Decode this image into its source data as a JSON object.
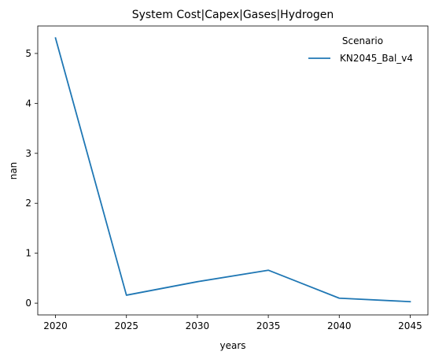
{
  "chart_data": {
    "type": "line",
    "title": "System Cost|Capex|Gases|Hydrogen",
    "xlabel": "years",
    "ylabel": "nan",
    "x": [
      2020,
      2025,
      2030,
      2035,
      2040,
      2045
    ],
    "xticks": [
      2020,
      2025,
      2030,
      2035,
      2040,
      2045
    ],
    "yticks": [
      0,
      1,
      2,
      3,
      4,
      5
    ],
    "xlim": [
      2018.75,
      2046.25
    ],
    "ylim": [
      -0.235,
      5.55
    ],
    "grid": false,
    "legend": {
      "title": "Scenario",
      "placement": "top-right"
    },
    "series": [
      {
        "name": "KN2045_Bal_v4",
        "color": "#1f77b4",
        "values": [
          5.31,
          0.16,
          0.43,
          0.66,
          0.1,
          0.03
        ]
      }
    ]
  }
}
